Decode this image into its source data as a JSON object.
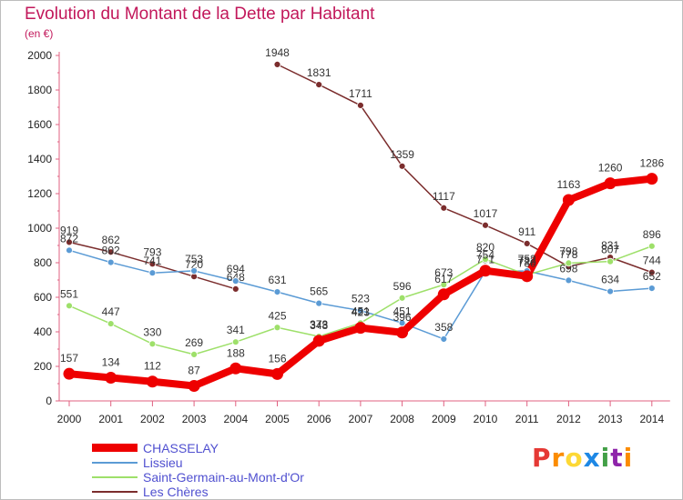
{
  "title": "Evolution du Montant de la Dette par Habitant",
  "unit": "(en €)",
  "logo": {
    "text": "Proxiti",
    "letters": [
      "P",
      "r",
      "o",
      "x",
      "i",
      "t",
      "i"
    ],
    "colors": [
      "#e53935",
      "#fb8c00",
      "#fdd835",
      "#1e88e5",
      "#43a047",
      "#8e24aa",
      "#fb8c00"
    ]
  },
  "chart_data": {
    "type": "line",
    "title": "Evolution du Montant de la Dette par Habitant",
    "ylabel": "(en €)",
    "xlabel": "",
    "ylim": [
      0,
      2000
    ],
    "yticks": [
      0,
      200,
      400,
      600,
      800,
      1000,
      1200,
      1400,
      1600,
      1800,
      2000
    ],
    "grid": false,
    "legend_position": "bottom-left",
    "x": [
      "2000",
      "2001",
      "2002",
      "2003",
      "2004",
      "2005",
      "2006",
      "2007",
      "2008",
      "2009",
      "2010",
      "2011",
      "2012",
      "2013",
      "2014"
    ],
    "series": [
      {
        "name": "Les Chères",
        "color": "#7b2d2d",
        "segments": [
          {
            "start": 0,
            "values": [
              919,
              862,
              793,
              720,
              648
            ]
          },
          {
            "start": 5,
            "values": [
              1948,
              1831,
              1711,
              1359,
              1117,
              1017,
              911,
              778,
              831,
              744
            ]
          }
        ]
      },
      {
        "name": "Lissieu",
        "color": "#5b9bd5",
        "segments": [
          {
            "start": 0,
            "values": [
              872,
              802,
              741,
              753,
              694,
              631,
              565,
              523,
              451,
              358,
              751,
              752,
              698,
              634,
              652
            ]
          }
        ]
      },
      {
        "name": "Saint-Germain-au-Mont-d'Or",
        "color": "#9ee06a",
        "segments": [
          {
            "start": 0,
            "values": [
              551,
              447,
              330,
              269,
              341,
              425,
              373,
              451,
              596,
              673,
              820,
              730,
              798,
              807,
              896
            ]
          }
        ]
      },
      {
        "name": "CHASSELAY",
        "color": "#ee0000",
        "segments": [
          {
            "start": 0,
            "values": [
              157,
              134,
              112,
              87,
              188,
              156,
              348,
              423,
              396,
              617,
              754,
              722,
              1163,
              1260,
              1286
            ]
          }
        ]
      }
    ],
    "legend": [
      "CHASSELAY",
      "Lissieu",
      "Saint-Germain-au-Mont-d'Or",
      "Les Chères"
    ]
  }
}
